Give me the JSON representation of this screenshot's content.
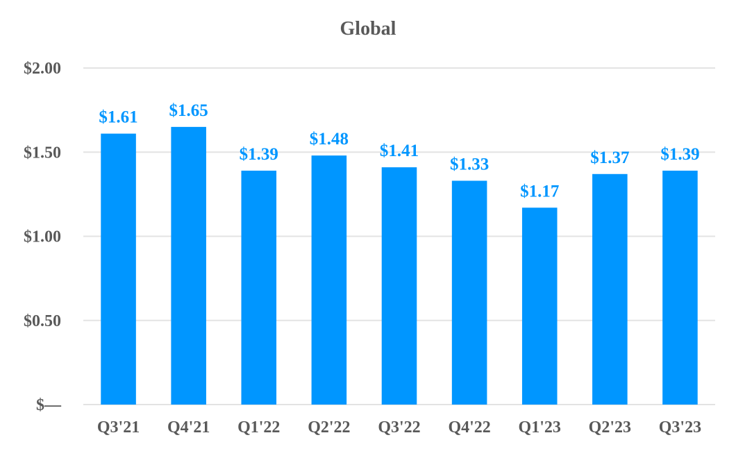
{
  "chart_data": {
    "type": "bar",
    "title": "Global",
    "categories": [
      "Q3'21",
      "Q4'21",
      "Q1'22",
      "Q2'22",
      "Q3'22",
      "Q4'22",
      "Q1'23",
      "Q2'23",
      "Q3'23"
    ],
    "values": [
      1.61,
      1.65,
      1.39,
      1.48,
      1.41,
      1.33,
      1.17,
      1.37,
      1.39
    ],
    "data_labels": [
      "$1.61",
      "$1.65",
      "$1.39",
      "$1.48",
      "$1.41",
      "$1.33",
      "$1.17",
      "$1.37",
      "$1.39"
    ],
    "y_ticks": [
      0,
      0.5,
      1.0,
      1.5,
      2.0
    ],
    "y_tick_labels": [
      "$—",
      "$0.50",
      "$1.00",
      "$1.50",
      "$2.00"
    ],
    "ylim": [
      0,
      2.0
    ],
    "grid": true,
    "legend": "none",
    "colors": {
      "bar": "#0096ff",
      "label": "#0096ff",
      "grid": "#e3e3e3",
      "text": "#595959"
    }
  }
}
